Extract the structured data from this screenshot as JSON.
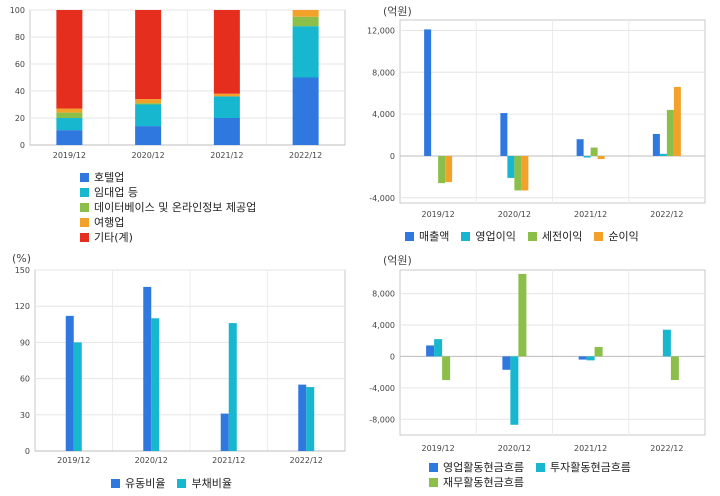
{
  "chart_data": [
    {
      "type": "bar",
      "stacked": true,
      "title": "",
      "categories": [
        "2019/12",
        "2020/12",
        "2021/12",
        "2022/12"
      ],
      "ylim": [
        0,
        100
      ],
      "yticks": [
        "0",
        "20",
        "40",
        "60",
        "80",
        "100"
      ],
      "grid": true,
      "legend_position": "bottom",
      "series": [
        {
          "name": "호텔업",
          "color": "#2e78e0",
          "values": [
            11,
            14,
            20,
            50
          ]
        },
        {
          "name": "임대업 등",
          "color": "#16b7cf",
          "values": [
            9,
            16,
            16,
            38
          ]
        },
        {
          "name": "데이터베이스 및 온라인정보 제공업",
          "color": "#8bbf4a",
          "values": [
            4,
            1,
            0,
            7
          ]
        },
        {
          "name": "여행업",
          "color": "#f2a22a",
          "values": [
            3,
            3,
            2,
            5
          ]
        },
        {
          "name": "기타(계)",
          "color": "#e62e1e",
          "values": [
            73,
            66,
            62,
            0
          ]
        }
      ]
    },
    {
      "type": "bar",
      "unit": "(억원)",
      "categories": [
        "2019/12",
        "2020/12",
        "2021/12",
        "2022/12"
      ],
      "ylim": [
        -4500,
        13000
      ],
      "yticks": [
        "-4,000",
        "0",
        "4,000",
        "8,000",
        "12,000"
      ],
      "grid": true,
      "legend_position": "bottom",
      "series": [
        {
          "name": "매출액",
          "color": "#2e78e0",
          "values": [
            12100,
            4100,
            1600,
            2100
          ]
        },
        {
          "name": "영업이익",
          "color": "#16b7cf",
          "values": [
            0,
            -2100,
            -150,
            200
          ]
        },
        {
          "name": "세전이익",
          "color": "#8bbf4a",
          "values": [
            -2600,
            -3300,
            800,
            4400
          ]
        },
        {
          "name": "순이익",
          "color": "#f2a22a",
          "values": [
            -2500,
            -3300,
            -300,
            6600
          ]
        }
      ]
    },
    {
      "type": "bar",
      "unit": "(%)",
      "categories": [
        "2019/12",
        "2020/12",
        "2021/12",
        "2022/12"
      ],
      "ylim": [
        0,
        150
      ],
      "yticks": [
        "0",
        "30",
        "60",
        "90",
        "120",
        "150"
      ],
      "grid": true,
      "legend_position": "bottom",
      "series": [
        {
          "name": "유동비율",
          "color": "#2e78e0",
          "values": [
            112,
            136,
            31,
            55
          ]
        },
        {
          "name": "부채비율",
          "color": "#16b7cf",
          "values": [
            90,
            110,
            106,
            53
          ]
        }
      ]
    },
    {
      "type": "bar",
      "unit": "(억원)",
      "categories": [
        "2019/12",
        "2020/12",
        "2021/12",
        "2022/12"
      ],
      "ylim": [
        -10000,
        11000
      ],
      "yticks": [
        "-8,000",
        "-4,000",
        "0",
        "4,000",
        "8,000"
      ],
      "grid": true,
      "legend_position": "bottom",
      "series": [
        {
          "name": "영업활동현금흐름",
          "color": "#2e78e0",
          "values": [
            1400,
            -1700,
            -400,
            0
          ]
        },
        {
          "name": "투자활동현금흐름",
          "color": "#16b7cf",
          "values": [
            2200,
            -8700,
            -500,
            3400
          ]
        },
        {
          "name": "재무활동현금흐름",
          "color": "#8bbf4a",
          "values": [
            -3000,
            10500,
            1200,
            -3000
          ]
        }
      ]
    }
  ]
}
